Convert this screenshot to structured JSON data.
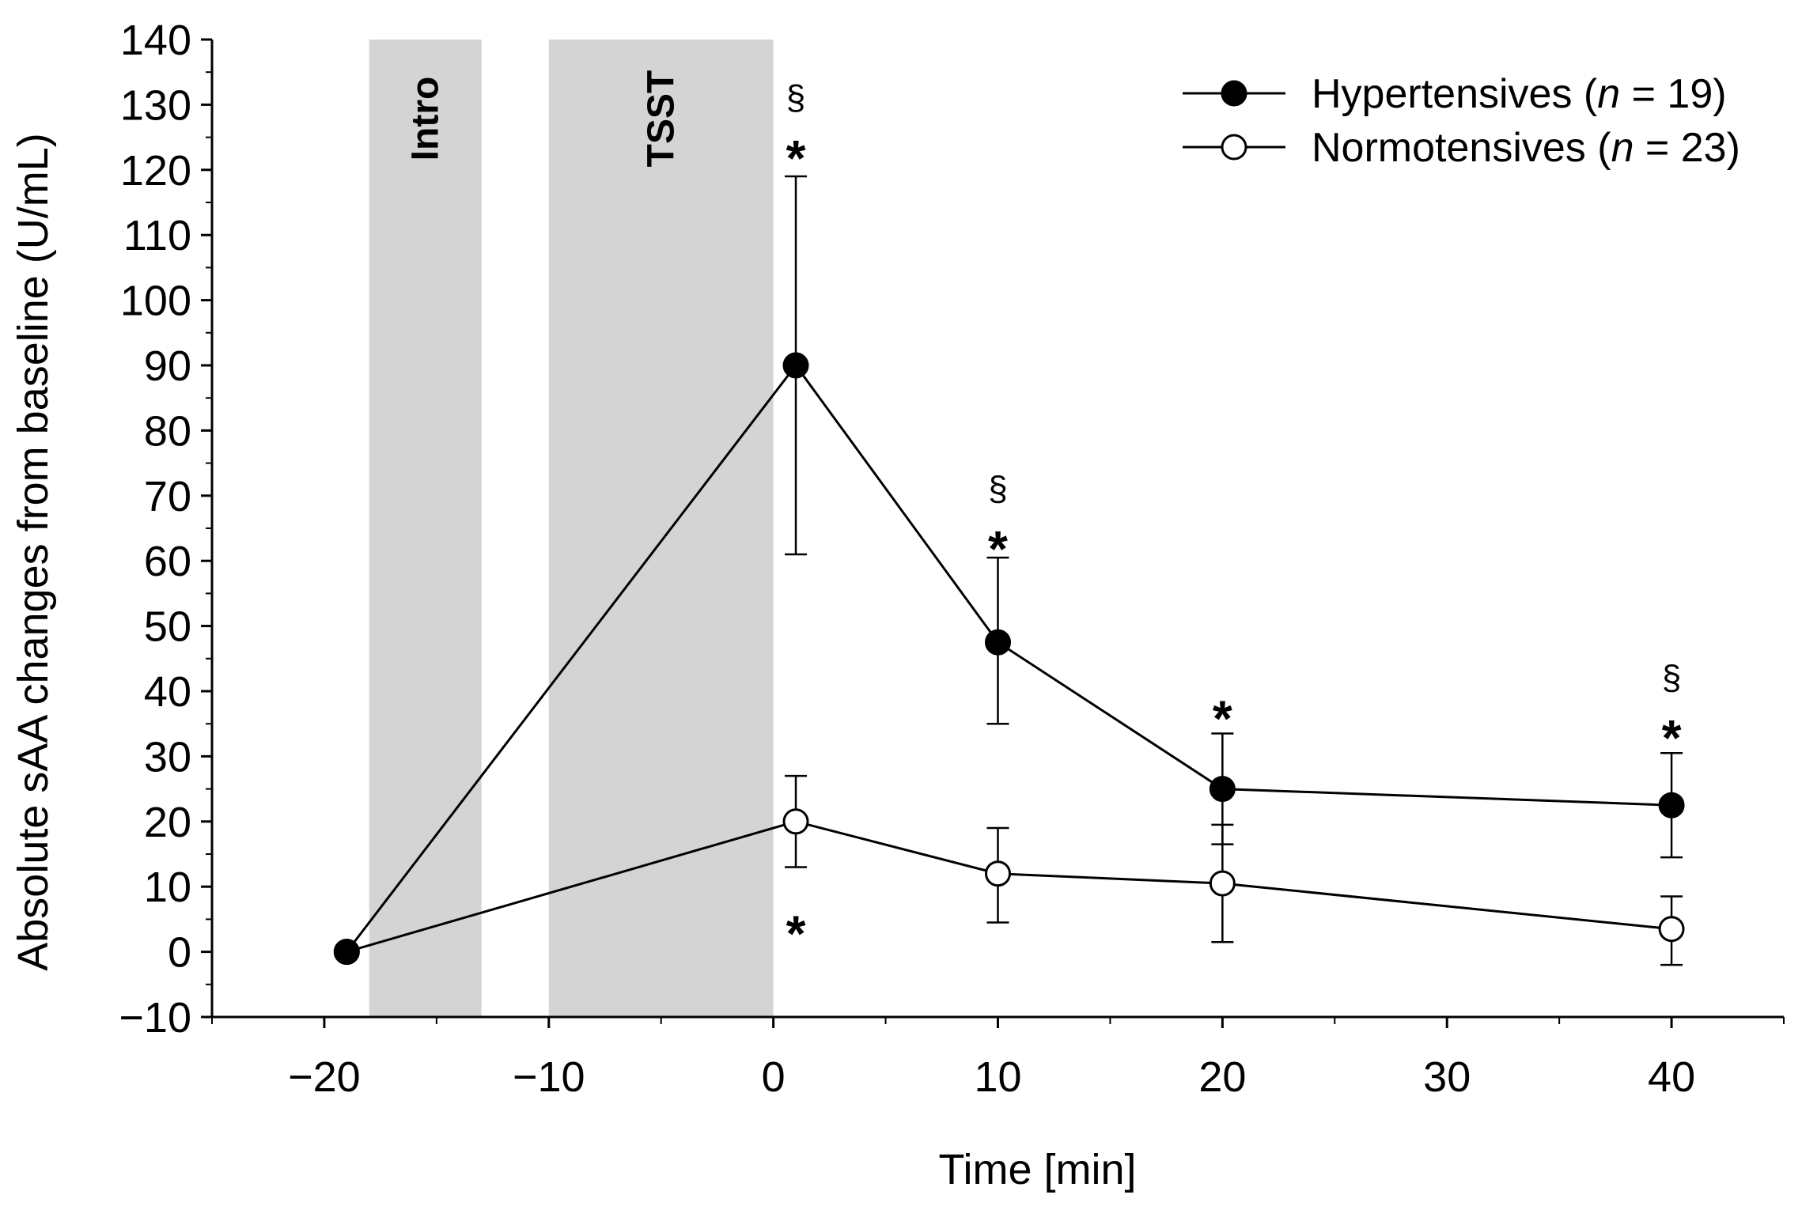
{
  "chart_data": {
    "type": "line",
    "title": "",
    "xlabel": "Time [min]",
    "ylabel": "Absolute sAA changes from baseline (U/mL)",
    "xlim": [
      -25,
      45
    ],
    "ylim": [
      -10,
      140
    ],
    "x_ticks": [
      -20,
      -10,
      0,
      10,
      20,
      30,
      40
    ],
    "x_tick_labels": [
      "−20",
      "−10",
      "0",
      "10",
      "20",
      "30",
      "40"
    ],
    "y_ticks": [
      -10,
      0,
      10,
      20,
      30,
      40,
      50,
      60,
      70,
      80,
      90,
      100,
      110,
      120,
      130,
      140
    ],
    "y_tick_labels": [
      "−10",
      "0",
      "10",
      "20",
      "30",
      "40",
      "50",
      "60",
      "70",
      "80",
      "90",
      "100",
      "110",
      "120",
      "130",
      "140"
    ],
    "shaded_bands": [
      {
        "label": "Intro",
        "x_start": -18,
        "x_end": -13
      },
      {
        "label": "TSST",
        "x_start": -10,
        "x_end": 0
      }
    ],
    "series": [
      {
        "name": "Hypertensives",
        "n_label": "n",
        "n_value": "= 19)",
        "legend_prefix": "Hypertensives (",
        "marker": "filled",
        "x": [
          -19,
          1,
          10,
          20,
          40
        ],
        "values": [
          0,
          90,
          47.5,
          25,
          22.5
        ],
        "err_low": [
          0,
          61,
          35,
          16.5,
          14.5
        ],
        "err_high": [
          0,
          119,
          60.5,
          33.5,
          30.5
        ]
      },
      {
        "name": "Normotensives",
        "n_label": "n",
        "n_value": "= 23)",
        "legend_prefix": "Normotensives (",
        "marker": "open",
        "x": [
          -19,
          1,
          10,
          20,
          40
        ],
        "values": [
          0,
          20,
          12,
          10.5,
          3.5
        ],
        "err_low": [
          0,
          13,
          4.5,
          1.5,
          -2
        ],
        "err_high": [
          0,
          27,
          19,
          19.5,
          8.5
        ]
      }
    ],
    "annotations": [
      {
        "text": "*",
        "x": 1,
        "y": 124,
        "kind": "star"
      },
      {
        "text": "§",
        "x": 1,
        "y": 131,
        "kind": "section"
      },
      {
        "text": "*",
        "x": 10,
        "y": 64,
        "kind": "star"
      },
      {
        "text": "§",
        "x": 10,
        "y": 71,
        "kind": "section"
      },
      {
        "text": "*",
        "x": 20,
        "y": 38,
        "kind": "star"
      },
      {
        "text": "*",
        "x": 40,
        "y": 35,
        "kind": "star"
      },
      {
        "text": "§",
        "x": 40,
        "y": 42,
        "kind": "section"
      },
      {
        "text": "*",
        "x": 1,
        "y": 5,
        "kind": "star"
      }
    ],
    "legend_position": "top-right"
  }
}
